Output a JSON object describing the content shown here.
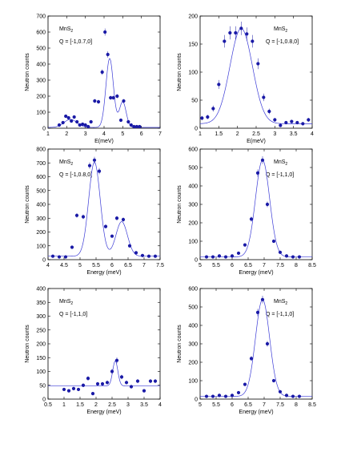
{
  "chart_data": [
    {
      "type": "scatter",
      "panel": "top-left",
      "sample": "MnS",
      "sample_sub": "2",
      "q_label": "Q = [-1,0.7,0]",
      "xlabel": "E(meV)",
      "ylabel": "Neutron counts",
      "xlim": [
        1,
        7
      ],
      "ylim": [
        0,
        700
      ],
      "xticks": [
        1,
        2,
        3,
        4,
        5,
        6,
        7
      ],
      "yticks": [
        0,
        100,
        200,
        300,
        400,
        500,
        600,
        700
      ],
      "points": {
        "x": [
          1.6,
          1.8,
          1.95,
          2.1,
          2.25,
          2.4,
          2.55,
          2.7,
          2.85,
          3.0,
          3.15,
          3.3,
          3.5,
          3.7,
          3.9,
          4.05,
          4.2,
          4.35,
          4.5,
          4.7,
          4.9,
          5.05,
          5.3,
          5.45,
          5.6,
          5.75,
          5.9
        ],
        "y": [
          20,
          35,
          75,
          65,
          45,
          70,
          40,
          20,
          25,
          20,
          10,
          40,
          170,
          165,
          350,
          600,
          460,
          190,
          190,
          200,
          50,
          170,
          40,
          20,
          10,
          10,
          10
        ]
      },
      "fit": {
        "x0": [
          2.2,
          4.3,
          5.0
        ],
        "amp": [
          50,
          430,
          160
        ],
        "sigma": [
          0.35,
          0.2,
          0.18
        ],
        "baseline": 5
      }
    },
    {
      "type": "scatter",
      "panel": "top-right",
      "sample": "MnS",
      "sample_sub": "2",
      "q_label": "Q = [-1,0.8,0]",
      "xlabel": "E(meV)",
      "ylabel": "Neutron counts",
      "xlim": [
        1,
        4
      ],
      "ylim": [
        0,
        200
      ],
      "xticks": [
        1,
        1.5,
        2,
        2.5,
        3,
        3.5,
        4
      ],
      "yticks": [
        0,
        50,
        100,
        150,
        200
      ],
      "points": {
        "x": [
          1.05,
          1.2,
          1.35,
          1.5,
          1.65,
          1.8,
          1.95,
          2.1,
          2.25,
          2.4,
          2.55,
          2.7,
          2.85,
          3.0,
          3.15,
          3.3,
          3.45,
          3.6,
          3.75,
          3.9
        ],
        "y": [
          18,
          20,
          35,
          78,
          155,
          170,
          170,
          178,
          168,
          155,
          115,
          55,
          30,
          15,
          5,
          10,
          12,
          10,
          8,
          15
        ]
      },
      "fit": {
        "x0": [
          2.1
        ],
        "amp": [
          170
        ],
        "sigma": [
          0.3
        ],
        "baseline": 8
      }
    },
    {
      "type": "scatter",
      "panel": "middle-left",
      "sample": "MnS",
      "sample_sub": "2",
      "q_label": "Q = [-1,0.8,0]",
      "xlabel": "Energy (meV)",
      "ylabel": "Neutron counts",
      "xlim": [
        4,
        7.5
      ],
      "ylim": [
        0,
        800
      ],
      "xticks": [
        4,
        4.5,
        5,
        5.5,
        6,
        6.5,
        7,
        7.5
      ],
      "yticks": [
        0,
        100,
        200,
        300,
        400,
        500,
        600,
        700,
        800
      ],
      "points": {
        "x": [
          4.15,
          4.35,
          4.55,
          4.75,
          4.9,
          5.1,
          5.3,
          5.45,
          5.6,
          5.8,
          6.0,
          6.15,
          6.35,
          6.55,
          6.75,
          6.95,
          7.15,
          7.35
        ],
        "y": [
          25,
          20,
          20,
          90,
          320,
          310,
          680,
          720,
          640,
          240,
          170,
          300,
          290,
          100,
          50,
          30,
          25,
          25
        ]
      },
      "fit": {
        "x0": [
          5.45,
          6.3
        ],
        "amp": [
          680,
          250
        ],
        "sigma": [
          0.18,
          0.18
        ],
        "baseline": 25
      }
    },
    {
      "type": "scatter",
      "panel": "middle-right",
      "sample": "MnS",
      "sample_sub": "2",
      "q_label": "Q = [-1,1,0]",
      "xlabel": "Energy (meV)",
      "ylabel": "Neutron counts",
      "xlim": [
        5,
        8.5
      ],
      "ylim": [
        0,
        600
      ],
      "xticks": [
        5,
        5.5,
        6,
        6.5,
        7,
        7.5,
        8,
        8.5
      ],
      "yticks": [
        0,
        100,
        200,
        300,
        400,
        500,
        600
      ],
      "points": {
        "x": [
          5.2,
          5.4,
          5.6,
          5.8,
          6.0,
          6.2,
          6.4,
          6.6,
          6.8,
          6.95,
          7.1,
          7.3,
          7.5,
          7.7,
          7.9,
          8.1
        ],
        "y": [
          15,
          15,
          20,
          15,
          20,
          35,
          80,
          220,
          470,
          540,
          300,
          100,
          40,
          20,
          15,
          15
        ]
      },
      "fit": {
        "x0": [
          6.95
        ],
        "amp": [
          525
        ],
        "sigma": [
          0.22
        ],
        "baseline": 15
      }
    },
    {
      "type": "scatter",
      "panel": "bottom-left",
      "sample": "MnS",
      "sample_sub": "2",
      "q_label": "Q = [-1,1,0]",
      "xlabel": "Energy (meV)",
      "ylabel": "Neutron counts",
      "xlim": [
        0.5,
        4
      ],
      "ylim": [
        0,
        400
      ],
      "xticks": [
        0.5,
        1,
        1.5,
        2,
        2.5,
        3,
        3.5,
        4
      ],
      "yticks": [
        0,
        50,
        100,
        150,
        200,
        250,
        300,
        350,
        400
      ],
      "points": {
        "x": [
          1.0,
          1.15,
          1.3,
          1.45,
          1.6,
          1.75,
          1.9,
          2.05,
          2.2,
          2.35,
          2.5,
          2.65,
          2.8,
          2.95,
          3.1,
          3.3,
          3.5,
          3.7,
          3.85
        ],
        "y": [
          35,
          30,
          38,
          35,
          50,
          75,
          20,
          55,
          55,
          60,
          100,
          140,
          80,
          60,
          45,
          65,
          30,
          65,
          65
        ]
      },
      "fit": {
        "x0": [
          2.6
        ],
        "amp": [
          90
        ],
        "sigma": [
          0.08
        ],
        "baseline": 48
      }
    },
    {
      "type": "scatter",
      "panel": "bottom-right",
      "sample": "MnS",
      "sample_sub": "2",
      "q_label": "Q = [-1,1,0]",
      "xlabel": "Energy (meV)",
      "ylabel": "Neutron counts",
      "xlim": [
        5,
        8.5
      ],
      "ylim": [
        0,
        600
      ],
      "xticks": [
        5,
        5.5,
        6,
        6.5,
        7,
        7.5,
        8,
        8.5
      ],
      "yticks": [
        0,
        100,
        200,
        300,
        400,
        500,
        600
      ],
      "points": {
        "x": [
          5.2,
          5.4,
          5.6,
          5.8,
          6.0,
          6.2,
          6.4,
          6.6,
          6.8,
          6.95,
          7.1,
          7.3,
          7.5,
          7.7,
          7.9,
          8.1
        ],
        "y": [
          15,
          15,
          20,
          15,
          20,
          35,
          80,
          220,
          470,
          540,
          300,
          100,
          40,
          20,
          15,
          15
        ]
      },
      "fit": {
        "x0": [
          6.95
        ],
        "amp": [
          525
        ],
        "sigma": [
          0.22
        ],
        "baseline": 15
      }
    }
  ],
  "colors": {
    "marker": "#1a1aa6",
    "fit_line": "#3b3bd6",
    "axis": "#000000"
  }
}
